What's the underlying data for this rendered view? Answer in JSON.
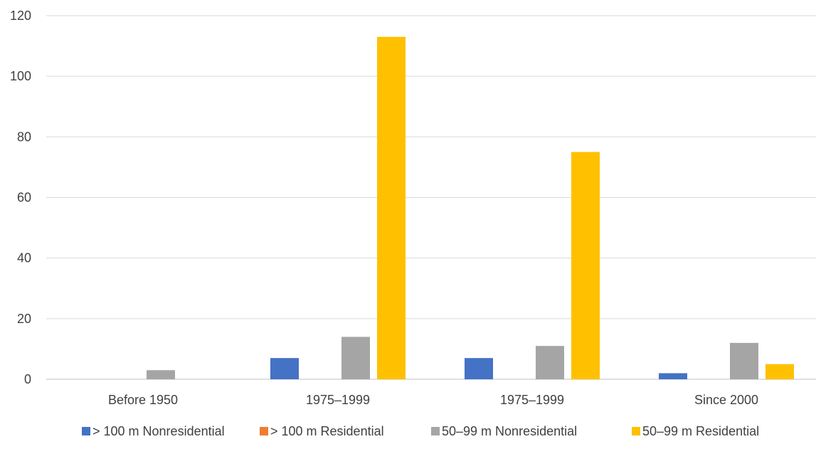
{
  "chart_data": {
    "type": "bar",
    "title": "",
    "xlabel": "",
    "ylabel": "",
    "categories": [
      "Before 1950",
      "1975–1999",
      "1975–1999",
      "Since 2000"
    ],
    "ylim": [
      0,
      120
    ],
    "yticks": [
      0,
      20,
      40,
      60,
      80,
      100,
      120
    ],
    "grid": true,
    "legend_position": "bottom",
    "series": [
      {
        "name": "> 100 m Nonresidential",
        "color": "#4472c4",
        "values": [
          0,
          7,
          7,
          2
        ]
      },
      {
        "name": "> 100 m Residential",
        "color": "#ed7d31",
        "values": [
          0,
          0,
          0,
          0
        ]
      },
      {
        "name": "50–99 m Nonresidential",
        "color": "#a5a5a5",
        "values": [
          3,
          14,
          11,
          12
        ]
      },
      {
        "name": "50–99 m Residential",
        "color": "#ffc000",
        "values": [
          0,
          113,
          75,
          5
        ]
      }
    ]
  }
}
